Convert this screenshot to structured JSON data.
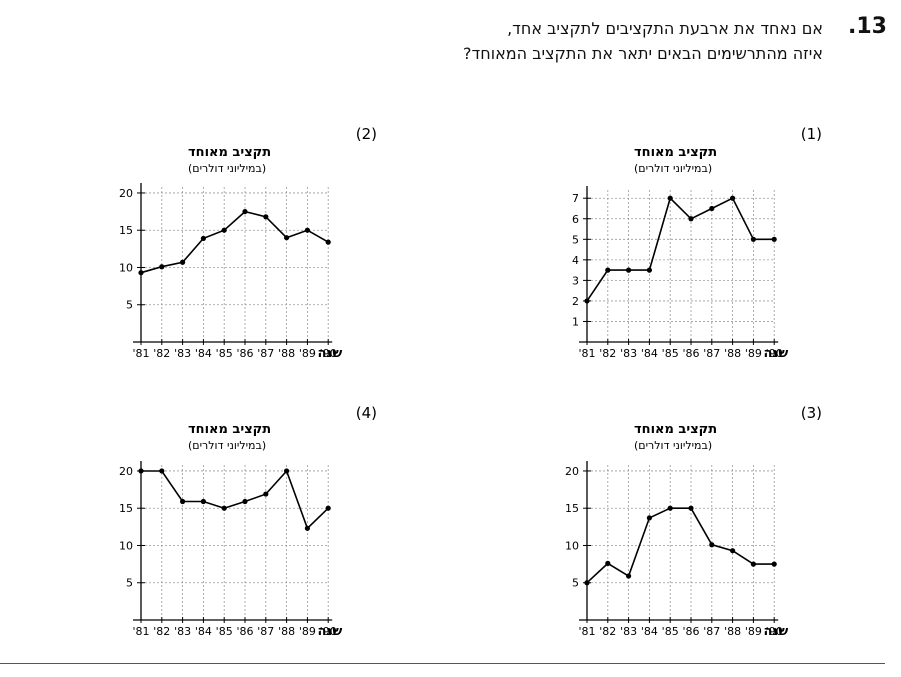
{
  "question": {
    "number": ".13",
    "line1": "אם נאחד את ארבעת התקציבים לתקציב אחד,",
    "line2": "איזה מהתרשימים הבאים יתאר את התקציב המאוחד?"
  },
  "chart_data": [
    {
      "type": "line",
      "option_label": "(1)",
      "title": "תקציב מאוחד",
      "subtitle": "(במיליוני דולרים)",
      "xlabel": "שנה",
      "categories": [
        "'81",
        "'82",
        "'83",
        "'84",
        "'85",
        "'86",
        "'87",
        "'88",
        "'89",
        "'90"
      ],
      "yticks": [
        1,
        2,
        3,
        4,
        5,
        6,
        7
      ],
      "ylim": [
        0,
        7.4
      ],
      "values": [
        2,
        3.5,
        3.5,
        3.5,
        7,
        6,
        6.5,
        7,
        5,
        5
      ]
    },
    {
      "type": "line",
      "option_label": "(2)",
      "title": "תקציב מאוחד",
      "subtitle": "(במיליוני דולרים)",
      "xlabel": "שנה",
      "categories": [
        "'81",
        "'82",
        "'83",
        "'84",
        "'85",
        "'86",
        "'87",
        "'88",
        "'89",
        "'90"
      ],
      "yticks": [
        5,
        10,
        15,
        20
      ],
      "ylim": [
        0,
        20.8
      ],
      "values": [
        9.3,
        10.1,
        10.7,
        13.9,
        15,
        17.5,
        16.8,
        14,
        15,
        13.4
      ]
    },
    {
      "type": "line",
      "option_label": "(3)",
      "title": "תקציב מאוחד",
      "subtitle": "(במיליוני דולרים)",
      "xlabel": "שנה",
      "categories": [
        "'81",
        "'82",
        "'83",
        "'84",
        "'85",
        "'86",
        "'87",
        "'88",
        "'89",
        "'90"
      ],
      "yticks": [
        5,
        10,
        15,
        20
      ],
      "ylim": [
        0,
        20.8
      ],
      "values": [
        5,
        7.6,
        5.9,
        13.7,
        15,
        15,
        10.1,
        9.3,
        7.5,
        7.5
      ]
    },
    {
      "type": "line",
      "option_label": "(4)",
      "title": "תקציב מאוחד",
      "subtitle": "(במיליוני דולרים)",
      "xlabel": "שנה",
      "categories": [
        "'81",
        "'82",
        "'83",
        "'84",
        "'85",
        "'86",
        "'87",
        "'88",
        "'89",
        "'90"
      ],
      "yticks": [
        5,
        10,
        15,
        20
      ],
      "ylim": [
        0,
        20.8
      ],
      "values": [
        20,
        20,
        15.9,
        15.9,
        15,
        15.9,
        16.9,
        20,
        12.3,
        15
      ]
    }
  ]
}
